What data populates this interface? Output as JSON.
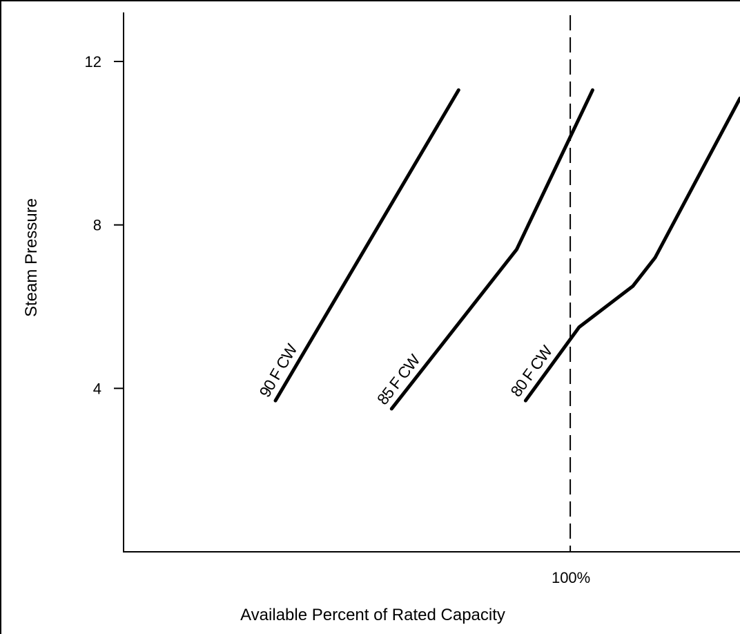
{
  "chart_data": {
    "type": "line",
    "title": "",
    "xlabel": "Available Percent of Rated Capacity",
    "ylabel": "Steam Pressure",
    "xlim": [
      0,
      138
    ],
    "ylim": [
      0,
      13.2
    ],
    "y_ticks": [
      {
        "value": 4,
        "label": "4"
      },
      {
        "value": 8,
        "label": "8"
      },
      {
        "value": 12,
        "label": "12"
      }
    ],
    "x_ticks": [
      {
        "value": 100,
        "label": "100%"
      }
    ],
    "reference_lines": [
      {
        "axis": "x",
        "value": 100,
        "style": "dashed"
      }
    ],
    "grid": false,
    "legend": "none",
    "series": [
      {
        "name": "90 F CW",
        "label_at_point": 0,
        "points": [
          [
            34,
            3.7
          ],
          [
            75,
            11.3
          ]
        ]
      },
      {
        "name": "85 F CW",
        "label_at_point": 0,
        "points": [
          [
            60,
            3.5
          ],
          [
            88,
            7.4
          ],
          [
            105,
            11.3
          ]
        ]
      },
      {
        "name": "80 F CW",
        "label_at_point": 0,
        "points": [
          [
            90,
            3.7
          ],
          [
            102,
            5.5
          ],
          [
            114,
            6.5
          ],
          [
            119,
            7.2
          ],
          [
            138,
            11.1
          ]
        ]
      }
    ]
  }
}
